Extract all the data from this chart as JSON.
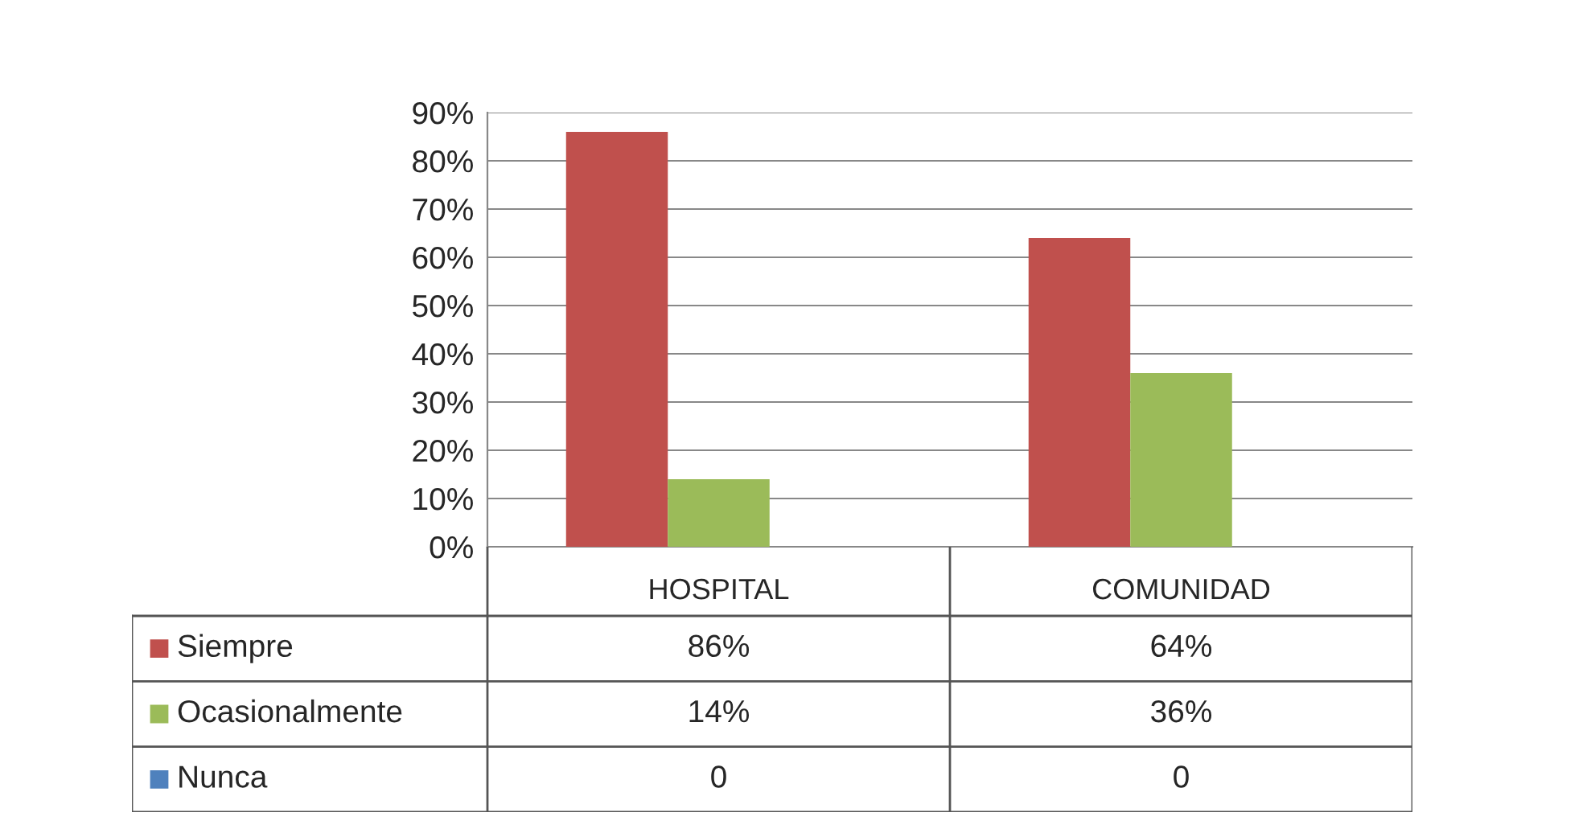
{
  "chart_data": {
    "type": "bar",
    "categories": [
      "HOSPITAL",
      "COMUNIDAD"
    ],
    "series": [
      {
        "name": "Siempre",
        "color": "#c0504d",
        "values": [
          86,
          64
        ],
        "value_labels": [
          "86%",
          "64%"
        ]
      },
      {
        "name": "Ocasionalmente",
        "color": "#9bbb59",
        "values": [
          14,
          36
        ],
        "value_labels": [
          "14%",
          "36%"
        ]
      },
      {
        "name": "Nunca",
        "color": "#4f81bd",
        "values": [
          0,
          0
        ],
        "value_labels": [
          "0",
          "0"
        ]
      }
    ],
    "ylim": [
      0,
      90
    ],
    "yticks": [
      {
        "value": 0,
        "label": "0%"
      },
      {
        "value": 10,
        "label": "10%"
      },
      {
        "value": 20,
        "label": "20%"
      },
      {
        "value": 30,
        "label": "30%"
      },
      {
        "value": 40,
        "label": "40%"
      },
      {
        "value": 50,
        "label": "50%"
      },
      {
        "value": 60,
        "label": "60%"
      },
      {
        "value": 70,
        "label": "70%"
      },
      {
        "value": 80,
        "label": "80%"
      },
      {
        "value": 90,
        "label": "90%"
      }
    ],
    "grid": "y",
    "legend": "bottom"
  }
}
